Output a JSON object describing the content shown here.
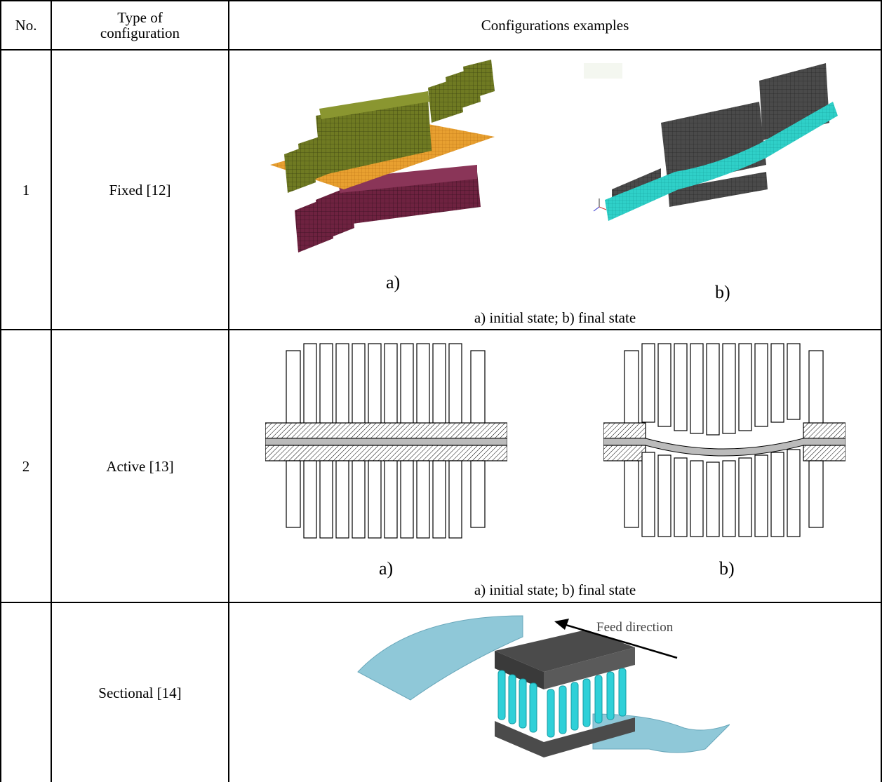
{
  "table": {
    "headers": {
      "no": "No.",
      "type_line1": "Type of",
      "type_line2": "configuration",
      "examples": "Configurations examples"
    },
    "rows": [
      {
        "no": "1",
        "type": "Fixed [12]",
        "label_a": "a)",
        "label_b": "b)",
        "caption": "a) initial state; b) final state"
      },
      {
        "no": "2",
        "type": "Active [13]",
        "label_a": "a)",
        "label_b": "b)",
        "caption": "a) initial state; b) final state"
      },
      {
        "no": "",
        "type": "Sectional [14]",
        "figure_annotation": "Feed direction"
      }
    ]
  },
  "colors": {
    "olive_pins": "#6f7a22",
    "maroon_pins": "#6e2240",
    "orange_sheet": "#e8a030",
    "grey_pins": "#4a4a4a",
    "cyan_sheet": "#2fd0c8",
    "light_blue_sheet": "#8fc8d8"
  }
}
